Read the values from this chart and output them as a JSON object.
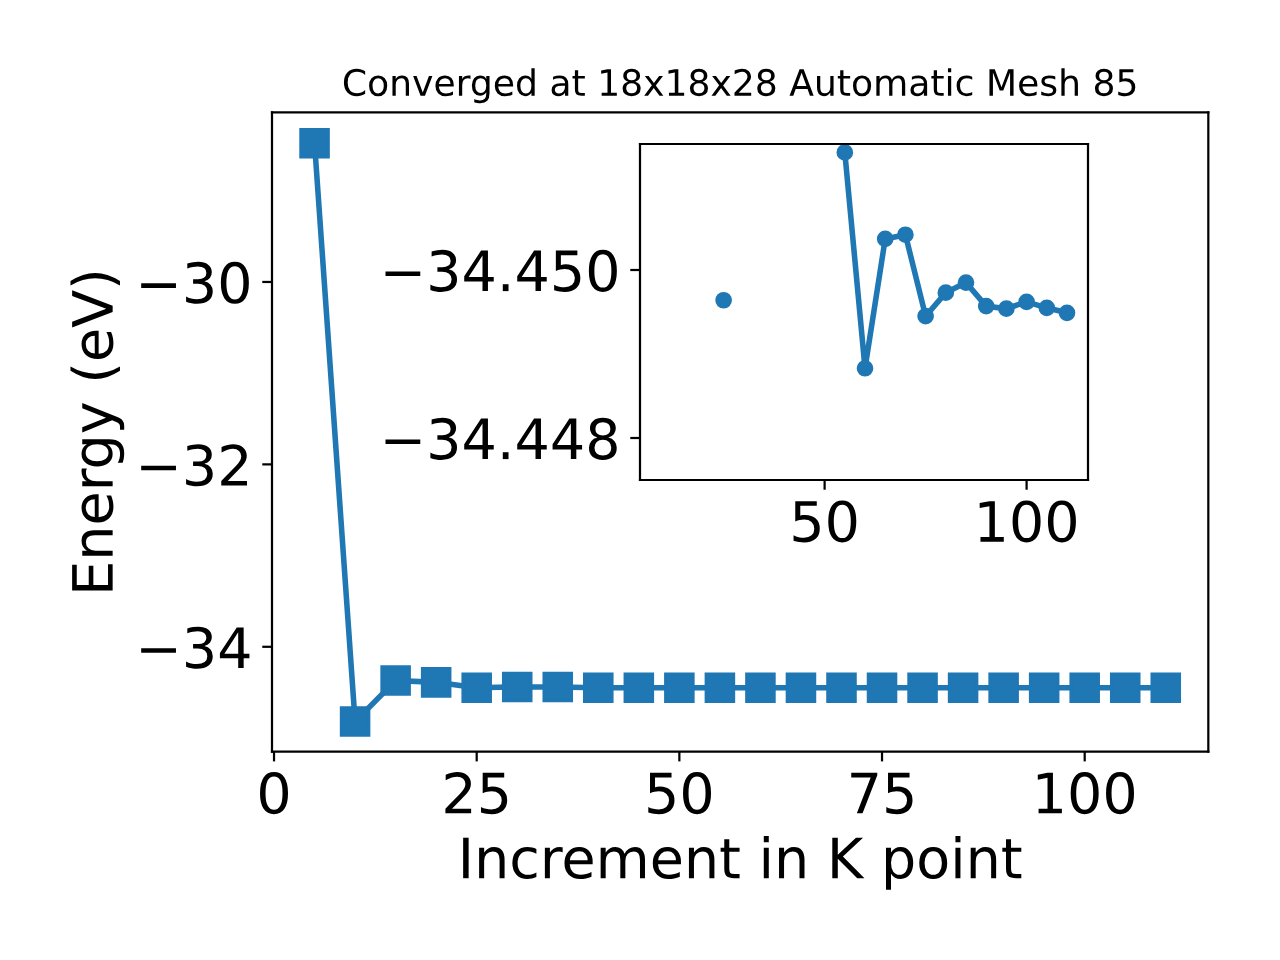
{
  "chart_data": [
    {
      "type": "line",
      "title": "Converged at 18x18x28 Automatic Mesh 85",
      "xlabel": "Increment in K point",
      "ylabel": "Energy (eV)",
      "x": [
        5,
        10,
        15,
        20,
        25,
        30,
        35,
        40,
        45,
        50,
        55,
        60,
        65,
        70,
        75,
        80,
        85,
        90,
        95,
        100,
        105,
        110
      ],
      "series": [
        {
          "color": "#1f77b4",
          "values": [
            -28.48,
            -34.82,
            -34.37,
            -34.39,
            -34.45,
            -34.44,
            -34.44,
            -34.45,
            -34.45,
            -34.45,
            -34.45,
            -34.45,
            -34.45,
            -34.45,
            -34.45,
            -34.45,
            -34.45,
            -34.45,
            -34.45,
            -34.45,
            -34.45,
            -34.45
          ]
        }
      ],
      "xlim": [
        -0.25,
        115.25
      ],
      "xticks": [
        0,
        25,
        50,
        75,
        100
      ],
      "ylim": [
        -35.15,
        -28.14
      ],
      "yticks": [
        {
          "value": -30,
          "label": "−30"
        },
        {
          "value": -32,
          "label": "−32"
        },
        {
          "value": -34,
          "label": "−34"
        }
      ],
      "marker": "square",
      "line_style": "solid",
      "grid": false,
      "legend": false
    },
    {
      "type": "line",
      "x": [
        25,
        30,
        35,
        40,
        45,
        50,
        55,
        60,
        65,
        70,
        75,
        80,
        85,
        90,
        95,
        100,
        105,
        110
      ],
      "series": [
        {
          "color": "#1f77b4",
          "values": [
            -34.44964,
            null,
            null,
            null,
            null,
            null,
            -34.4514,
            -34.44883,
            -34.45037,
            -34.45042,
            -34.44945,
            -34.44973,
            -34.44985,
            -34.44957,
            -34.44954,
            -34.44962,
            -34.44955,
            -34.44949
          ]
        }
      ],
      "xlim": [
        4.3,
        115.2
      ],
      "xticks": [
        50,
        100
      ],
      "ylim": [
        -34.4475,
        -34.4515
      ],
      "yticks": [
        {
          "value": -34.45,
          "label": "−34.450"
        },
        {
          "value": -34.448,
          "label": "−34.448"
        }
      ],
      "marker": "circle",
      "line_style": "solid",
      "grid": false,
      "legend": false
    }
  ]
}
